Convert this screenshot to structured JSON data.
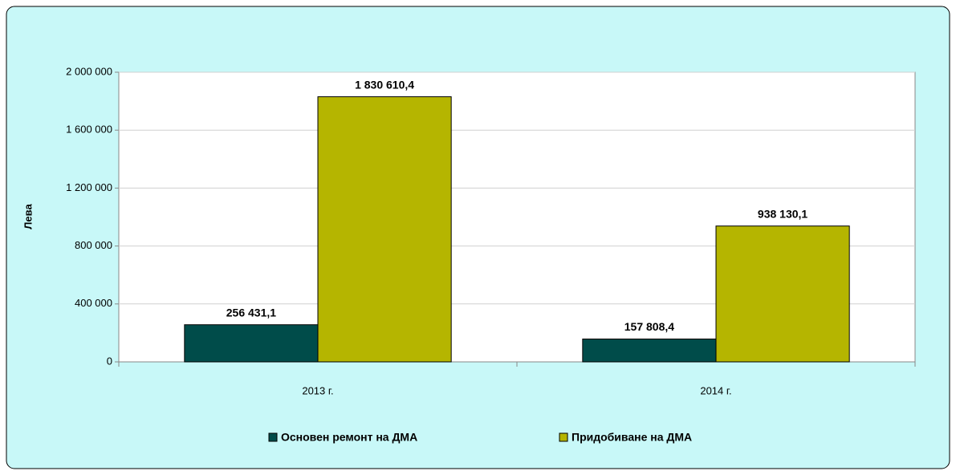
{
  "chart_data": {
    "type": "bar",
    "y_label": "Лева",
    "categories": [
      "2013 г.",
      "2014 г."
    ],
    "series": [
      {
        "name": "Основен ремонт на ДМА",
        "color": "#004c4a",
        "values": [
          256431.1,
          157808.4
        ],
        "value_labels": [
          "256 431,1",
          "157 808,4"
        ]
      },
      {
        "name": "Придобиване на ДМА",
        "color": "#b5b500",
        "values": [
          1830610.4,
          938130.1
        ],
        "value_labels": [
          "1 830 610,4",
          "938 130,1"
        ]
      }
    ],
    "ylim": [
      0,
      2000000
    ],
    "yticks": [
      0,
      {
        "value": 400000,
        "label": "400 000"
      },
      {
        "value": 800000,
        "label": "800 000"
      },
      {
        "value": 1200000,
        "label": "1 200 000"
      },
      {
        "value": 1600000,
        "label": "1 600 000"
      },
      {
        "value": 2000000,
        "label": "2 000 000"
      }
    ],
    "grid": true,
    "legend": "bottom"
  }
}
